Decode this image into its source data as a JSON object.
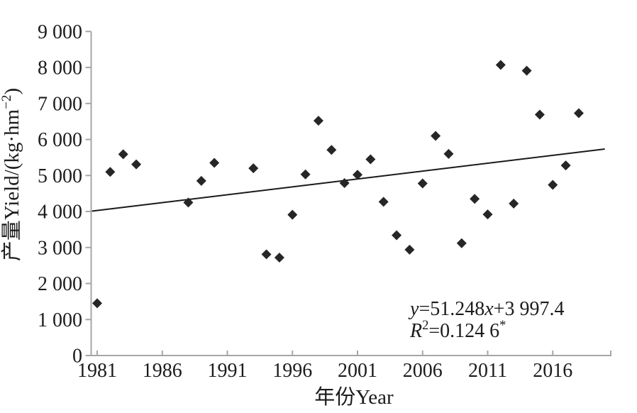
{
  "chart_data": {
    "type": "scatter",
    "title": "",
    "xlabel": "年份Year",
    "ylabel": "产量Yield/(kg·hm⁻²)",
    "ylabel_parts": [
      {
        "t": "产量Yield/(kg·hm"
      },
      {
        "t": "−2",
        "sup": true
      },
      {
        "t": ")"
      }
    ],
    "x_ticks": [
      1981,
      1986,
      1991,
      1996,
      2001,
      2006,
      2011,
      2016
    ],
    "y_ticks": [
      0,
      1000,
      2000,
      3000,
      4000,
      5000,
      6000,
      7000,
      8000,
      9000
    ],
    "xlim": [
      1980.5,
      2020.6
    ],
    "ylim": [
      0,
      9000
    ],
    "grid": false,
    "legend": "none",
    "marker": "diamond",
    "points": [
      {
        "year": 1981,
        "yield": 1450
      },
      {
        "year": 1982,
        "yield": 5100
      },
      {
        "year": 1983,
        "yield": 5590
      },
      {
        "year": 1984,
        "yield": 5310
      },
      {
        "year": 1988,
        "yield": 4250
      },
      {
        "year": 1989,
        "yield": 4850
      },
      {
        "year": 1990,
        "yield": 5350
      },
      {
        "year": 1993,
        "yield": 5200
      },
      {
        "year": 1994,
        "yield": 2810
      },
      {
        "year": 1995,
        "yield": 2720
      },
      {
        "year": 1996,
        "yield": 3910
      },
      {
        "year": 1997,
        "yield": 5030
      },
      {
        "year": 1998,
        "yield": 6520
      },
      {
        "year": 1999,
        "yield": 5710
      },
      {
        "year": 2000,
        "yield": 4790
      },
      {
        "year": 2001,
        "yield": 5020
      },
      {
        "year": 2002,
        "yield": 5450
      },
      {
        "year": 2003,
        "yield": 4270
      },
      {
        "year": 2004,
        "yield": 3340
      },
      {
        "year": 2005,
        "yield": 2940
      },
      {
        "year": 2006,
        "yield": 4780
      },
      {
        "year": 2007,
        "yield": 6100
      },
      {
        "year": 2008,
        "yield": 5600
      },
      {
        "year": 2009,
        "yield": 3120
      },
      {
        "year": 2010,
        "yield": 4350
      },
      {
        "year": 2011,
        "yield": 3920
      },
      {
        "year": 2012,
        "yield": 8070
      },
      {
        "year": 2013,
        "yield": 4220
      },
      {
        "year": 2014,
        "yield": 7910
      },
      {
        "year": 2015,
        "yield": 6690
      },
      {
        "year": 2016,
        "yield": 4740
      },
      {
        "year": 2017,
        "yield": 5280
      },
      {
        "year": 2018,
        "yield": 6730
      }
    ],
    "trendline": {
      "x1": 1980.6,
      "y1": 4010,
      "x2": 2020.0,
      "y2": 5735
    },
    "annotation": {
      "line1": "y=51.248x+3 997.4",
      "line2": "R²=0.124 6*",
      "line1_parts": [
        {
          "t": "y",
          "i": true
        },
        {
          "t": "=51.248"
        },
        {
          "t": "x",
          "i": true
        },
        {
          "t": "+3 997.4"
        }
      ],
      "line2_parts": [
        {
          "t": "R",
          "i": true
        },
        {
          "t": "2",
          "sup": true
        },
        {
          "t": "=0.124 6"
        },
        {
          "t": "*",
          "sup": true
        }
      ]
    },
    "colors": {
      "marker": "#262626",
      "trendline": "#1a1a1a",
      "axis": "#a6a6a6",
      "text": "#1c1c1c"
    }
  }
}
